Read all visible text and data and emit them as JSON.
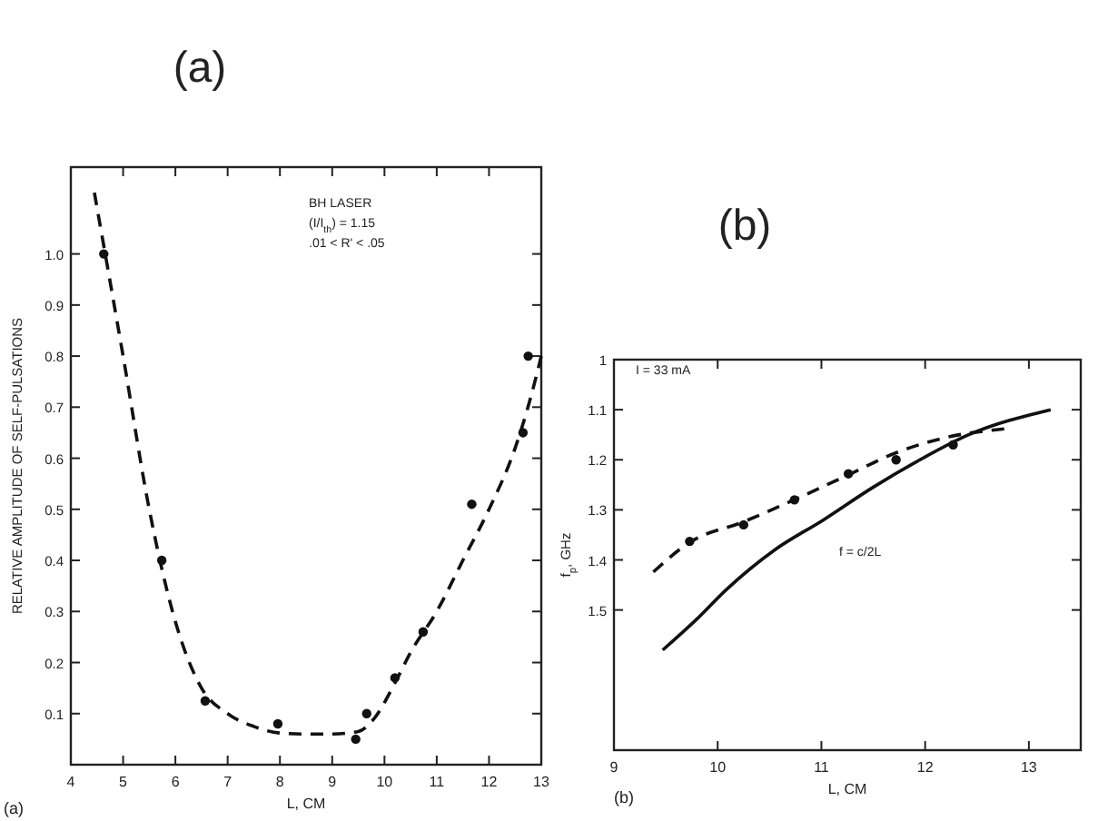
{
  "chart_data": [
    {
      "type": "scatter",
      "title": "(a)",
      "xlabel": "L, CM",
      "ylabel": "RELATIVE AMPLITUDE OF SELF-PULSATIONS",
      "xlim": [
        4,
        13
      ],
      "ylim": [
        0,
        1.17
      ],
      "xticks": [
        4,
        5,
        6,
        7,
        8,
        9,
        10,
        11,
        12,
        13
      ],
      "yticks": [
        0.1,
        0.2,
        0.3,
        0.4,
        0.5,
        0.6,
        0.7,
        0.8,
        0.9,
        {
          "value": 1,
          "label": "1.0"
        }
      ],
      "grid": false,
      "annotations": [
        "BH LASER",
        "(I/I$_{th}$) = 1.15",
        ".01 < R' < .05",
        "(a)"
      ],
      "series": [
        {
          "marker": "circle",
          "color": "#111111",
          "x": [
            4.63,
            5.74,
            6.57,
            7.96,
            9.45,
            9.66,
            10.2,
            10.74,
            11.67,
            12.65,
            12.75
          ],
          "values": [
            1.0,
            0.4,
            0.125,
            0.08,
            0.05,
            0.1,
            0.17,
            0.26,
            0.51,
            0.65,
            0.8
          ]
        },
        {
          "type": "line",
          "line_style": "dashed",
          "color": "#111111",
          "x": [
            4.45,
            5,
            5.5,
            6,
            6.5,
            7,
            7.5,
            8,
            8.5,
            9,
            9.5,
            9.8,
            10.2,
            10.5,
            11,
            11.5,
            12,
            12.5,
            12.8,
            13
          ],
          "values": [
            1.12,
            0.8,
            0.5,
            0.28,
            0.15,
            0.1,
            0.075,
            0.062,
            0.06,
            0.06,
            0.065,
            0.09,
            0.16,
            0.22,
            0.3,
            0.4,
            0.5,
            0.62,
            0.72,
            0.8
          ]
        }
      ]
    },
    {
      "type": "scatter",
      "title": "(b)",
      "xlabel": "L, CM",
      "ylabel": "f$_{p}$, GHz",
      "xlim": [
        9,
        13.5
      ],
      "ylim": [
        1.78,
        1.0
      ],
      "xticks": [
        9,
        10,
        11,
        12,
        13
      ],
      "yticks": [
        1,
        1.1,
        1.2,
        1.3,
        1.4,
        1.5
      ],
      "grid": false,
      "annotations": [
        "I = 33 mA",
        "f = c/2L",
        "(b)"
      ],
      "series": [
        {
          "marker": "circle",
          "color": "#111111",
          "x": [
            9.73,
            10.25,
            10.74,
            11.26,
            11.72,
            12.27
          ],
          "values": [
            1.363,
            1.33,
            1.28,
            1.228,
            1.2,
            1.17
          ]
        },
        {
          "type": "line",
          "line_style": "dashed",
          "color": "#111111",
          "x": [
            9.38,
            9.73,
            10.26,
            10.78,
            11.26,
            11.72,
            12.19,
            12.77
          ],
          "values": [
            1.424,
            1.365,
            1.323,
            1.276,
            1.23,
            1.186,
            1.156,
            1.138
          ]
        },
        {
          "type": "line",
          "line_style": "solid",
          "color": "#111111",
          "x": [
            9.47,
            9.79,
            10.08,
            10.55,
            11.02,
            11.49,
            11.95,
            12.42,
            13.21
          ],
          "values": [
            1.58,
            1.52,
            1.46,
            1.38,
            1.32,
            1.256,
            1.2,
            1.15,
            1.1
          ]
        }
      ]
    }
  ]
}
